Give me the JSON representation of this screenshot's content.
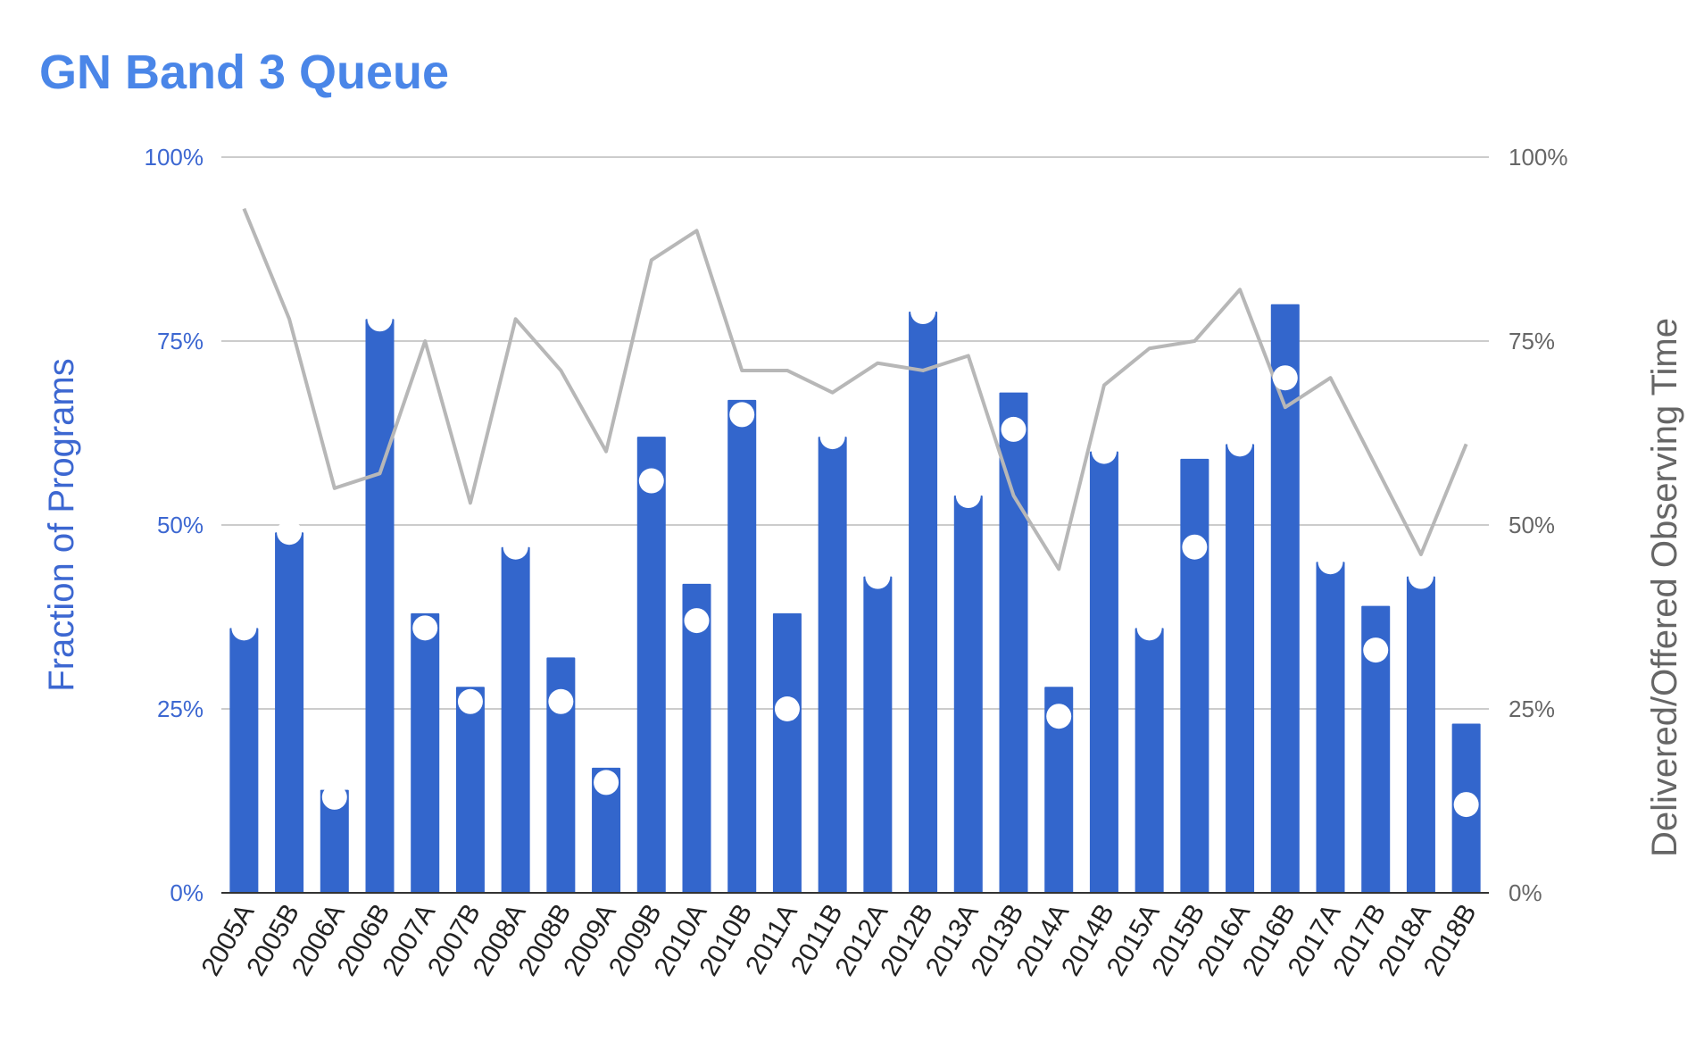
{
  "chart_data": {
    "type": "bar",
    "title": "GN Band 3 Queue",
    "ylabel": "Fraction of Programs",
    "y2label": "Delivered/Offered Observing Time",
    "ylim": [
      0,
      100
    ],
    "y2lim": [
      0,
      100
    ],
    "yticks": [
      "0%",
      "25%",
      "50%",
      "75%",
      "100%"
    ],
    "y2ticks": [
      "0%",
      "25%",
      "50%",
      "75%",
      "100%"
    ],
    "grid": true,
    "categories": [
      "2005A",
      "2005B",
      "2006A",
      "2006B",
      "2007A",
      "2007B",
      "2008A",
      "2008B",
      "2009A",
      "2009B",
      "2010A",
      "2010B",
      "2011A",
      "2011B",
      "2012A",
      "2012B",
      "2013A",
      "2013B",
      "2014A",
      "2014B",
      "2015A",
      "2015B",
      "2016A",
      "2016B",
      "2017A",
      "2017B",
      "2018A",
      "2018B"
    ],
    "series": [
      {
        "type": "bar",
        "axis": "left",
        "color": "#3366cc",
        "values": [
          36,
          49,
          14,
          78,
          38,
          28,
          47,
          32,
          17,
          62,
          42,
          67,
          38,
          62,
          43,
          79,
          54,
          68,
          28,
          60,
          36,
          59,
          61,
          80,
          45,
          39,
          43,
          23
        ]
      },
      {
        "type": "dots",
        "axis": "left",
        "color": "#ffffff",
        "values": [
          36,
          49,
          13,
          78,
          36,
          26,
          47,
          26,
          15,
          56,
          37,
          65,
          25,
          62,
          43,
          79,
          54,
          63,
          24,
          60,
          36,
          47,
          61,
          70,
          45,
          33,
          43,
          12
        ]
      },
      {
        "type": "line",
        "axis": "right",
        "color": "#b7b7b7",
        "values": [
          93,
          78,
          55,
          57,
          75,
          53,
          78,
          71,
          60,
          86,
          90,
          71,
          71,
          68,
          72,
          71,
          73,
          54,
          44,
          69,
          74,
          75,
          82,
          66,
          70,
          58,
          46,
          61
        ]
      }
    ],
    "colors": {
      "title": "#4a86e8",
      "left_axis": "#3c67d1",
      "right_axis": "#666666",
      "grid": "#cccccc",
      "axis_line": "#333333",
      "x_labels": "#222222"
    }
  }
}
